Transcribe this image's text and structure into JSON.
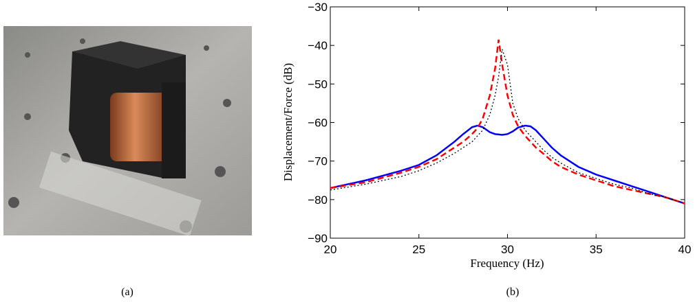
{
  "captions": [
    "(a)",
    "(b)"
  ],
  "chart_data": {
    "type": "line",
    "xlabel": "Frequency (Hz)",
    "ylabel": "Displacement/Force (dB)",
    "xlim": [
      20,
      40
    ],
    "ylim": [
      -90,
      -30
    ],
    "xticks": [
      20,
      25,
      30,
      35,
      40
    ],
    "yticks": [
      {
        "value": -90,
        "label": "−90"
      },
      {
        "value": -80,
        "label": "−80"
      },
      {
        "value": -70,
        "label": "−70"
      },
      {
        "value": -60,
        "label": "−60"
      },
      {
        "value": -50,
        "label": "−50"
      },
      {
        "value": -40,
        "label": "−40"
      },
      {
        "value": -30,
        "label": "−30"
      }
    ],
    "x": [
      20,
      22,
      24,
      25,
      26,
      27,
      27.5,
      28,
      28.3,
      28.6,
      29,
      29.3,
      29.5,
      29.7,
      30,
      30.3,
      30.6,
      31,
      31.3,
      31.6,
      32,
      32.5,
      33,
      34,
      35,
      36,
      37,
      38,
      39,
      40
    ],
    "series": [
      {
        "color": "#0000ff",
        "style": "solid",
        "values": [
          -77,
          -75,
          -72.5,
          -71,
          -68.5,
          -65,
          -63,
          -61.2,
          -60.8,
          -61.2,
          -62.5,
          -63,
          -63.1,
          -63.2,
          -63,
          -62.3,
          -61.3,
          -60.8,
          -61,
          -62,
          -64,
          -66.5,
          -68.5,
          -71.5,
          -73.5,
          -75,
          -76.5,
          -78,
          -79.5,
          -81
        ]
      },
      {
        "color": "#ff0000",
        "style": "dashed",
        "values": [
          -77,
          -75.5,
          -73,
          -71.5,
          -69.5,
          -66.5,
          -65,
          -63,
          -61.5,
          -59,
          -53,
          -46,
          -38.5,
          -45,
          -53,
          -58,
          -61,
          -63.5,
          -65,
          -66.5,
          -68,
          -70,
          -71.5,
          -73.5,
          -75,
          -76.5,
          -77.5,
          -78.5,
          -79.5,
          -81
        ]
      },
      {
        "color": "#000000",
        "style": "dotted",
        "values": [
          -77.5,
          -76,
          -74,
          -72.5,
          -70.5,
          -68,
          -66.5,
          -65,
          -63.5,
          -62,
          -58,
          -53,
          -48,
          -41,
          -45,
          -55,
          -59,
          -62,
          -63.5,
          -65,
          -67,
          -69,
          -70.5,
          -73,
          -74.5,
          -76,
          -77,
          -78.5,
          -79.5,
          -81
        ]
      }
    ]
  }
}
